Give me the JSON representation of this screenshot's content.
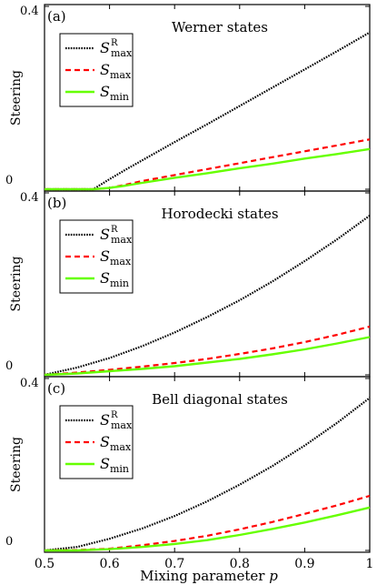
{
  "figure": {
    "xlabel_prefix": "Mixing parameter ",
    "xlabel_var": "p"
  },
  "chart_data": [
    {
      "type": "line",
      "panel_label": "(a)",
      "title": "Werner states",
      "ylabel": "Steering",
      "xlim": [
        0.5,
        1.0
      ],
      "ylim": [
        0,
        0.4
      ],
      "yticks": [
        "0",
        "0.4"
      ],
      "x": [
        0.5,
        0.55,
        0.575,
        0.6,
        0.625,
        0.65,
        0.7,
        0.75,
        0.8,
        0.85,
        0.9,
        0.95,
        1.0
      ],
      "series": [
        {
          "name": "S_max^R",
          "base": "S",
          "sub": "max",
          "sup": "R",
          "color": "#000000",
          "style": "dotted",
          "values": [
            0,
            0,
            0,
            0.022,
            0.043,
            0.063,
            0.103,
            0.142,
            0.182,
            0.222,
            0.262,
            0.302,
            0.343
          ]
        },
        {
          "name": "S_max",
          "base": "S",
          "sub": "max",
          "sup": "",
          "color": "#ff0000",
          "style": "dashed",
          "values": [
            0,
            0,
            0,
            0.003,
            0.01,
            0.018,
            0.031,
            0.044,
            0.057,
            0.07,
            0.083,
            0.096,
            0.109
          ]
        },
        {
          "name": "S_min",
          "base": "S",
          "sub": "min",
          "sup": "",
          "color": "#66ff00",
          "style": "solid",
          "values": [
            0,
            0,
            0,
            0.003,
            0.008,
            0.014,
            0.025,
            0.035,
            0.046,
            0.056,
            0.067,
            0.077,
            0.088
          ]
        }
      ]
    },
    {
      "type": "line",
      "panel_label": "(b)",
      "title": "Horodecki states",
      "ylabel": "Steering",
      "xlim": [
        0.5,
        1.0
      ],
      "ylim": [
        0,
        0.4
      ],
      "yticks": [
        "0",
        "0.4"
      ],
      "x": [
        0.5,
        0.55,
        0.6,
        0.65,
        0.7,
        0.75,
        0.8,
        0.85,
        0.9,
        0.95,
        1.0
      ],
      "series": [
        {
          "name": "S_max^R",
          "base": "S",
          "sub": "max",
          "sup": "R",
          "color": "#000000",
          "style": "dotted",
          "values": [
            0,
            0.016,
            0.037,
            0.063,
            0.093,
            0.127,
            0.164,
            0.205,
            0.25,
            0.298,
            0.35
          ]
        },
        {
          "name": "S_max",
          "base": "S",
          "sub": "max",
          "sup": "",
          "color": "#ff0000",
          "style": "dashed",
          "values": [
            0,
            0.005,
            0.011,
            0.018,
            0.026,
            0.035,
            0.046,
            0.058,
            0.072,
            0.088,
            0.106
          ]
        },
        {
          "name": "S_min",
          "base": "S",
          "sub": "min",
          "sup": "",
          "color": "#66ff00",
          "style": "solid",
          "values": [
            0,
            0.003,
            0.008,
            0.013,
            0.019,
            0.027,
            0.035,
            0.045,
            0.056,
            0.069,
            0.083
          ]
        }
      ]
    },
    {
      "type": "line",
      "panel_label": "(c)",
      "title": "Bell diagonal states",
      "ylabel": "Steering",
      "xlim": [
        0.5,
        1.0
      ],
      "ylim": [
        0,
        0.4
      ],
      "yticks": [
        "0",
        "0.4"
      ],
      "xticks": [
        "0.5",
        "0.6",
        "0.7",
        "0.8",
        "0.9",
        "1"
      ],
      "x": [
        0.5,
        0.55,
        0.6,
        0.65,
        0.7,
        0.75,
        0.8,
        0.85,
        0.9,
        0.95,
        1.0
      ],
      "series": [
        {
          "name": "S_max^R",
          "base": "S",
          "sub": "max",
          "sup": "R",
          "color": "#000000",
          "style": "dotted",
          "values": [
            0,
            0.008,
            0.027,
            0.051,
            0.08,
            0.114,
            0.153,
            0.196,
            0.244,
            0.297,
            0.355
          ]
        },
        {
          "name": "S_max",
          "base": "S",
          "sub": "max",
          "sup": "",
          "color": "#ff0000",
          "style": "dashed",
          "values": [
            0,
            0.001,
            0.004,
            0.012,
            0.022,
            0.034,
            0.049,
            0.066,
            0.085,
            0.105,
            0.127
          ]
        },
        {
          "name": "S_min",
          "base": "S",
          "sub": "min",
          "sup": "",
          "color": "#66ff00",
          "style": "solid",
          "values": [
            0,
            0,
            0.003,
            0.008,
            0.015,
            0.024,
            0.036,
            0.05,
            0.065,
            0.082,
            0.1
          ]
        }
      ]
    }
  ]
}
